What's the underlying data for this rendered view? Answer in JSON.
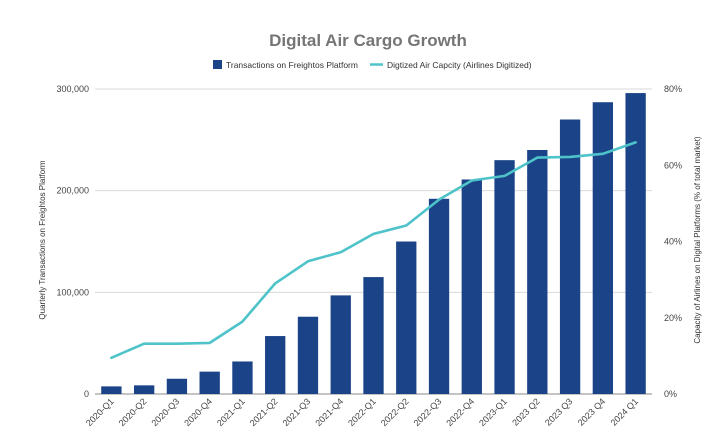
{
  "chart_data": {
    "type": "bar",
    "title": "Digital Air Cargo Growth",
    "categories": [
      "2020-Q1",
      "2020-Q2",
      "2020-Q3",
      "2020-Q4",
      "2021-Q1",
      "2021-Q2",
      "2021-Q3",
      "2021-Q4",
      "2022-Q1",
      "2022-Q2",
      "2022-Q3",
      "2022-Q4",
      "2023-Q1",
      "2023 Q2",
      "2023 Q3",
      "2023 Q4",
      "2024 Q1"
    ],
    "series": [
      {
        "name": "Transactions on Freightos Platform",
        "type": "bar",
        "axis": "left",
        "color": "#1b4488",
        "values": [
          7500,
          8500,
          15000,
          22000,
          32000,
          57000,
          76000,
          97000,
          115000,
          150000,
          192000,
          211000,
          230000,
          240000,
          270000,
          287000,
          296000
        ]
      },
      {
        "name": "Digtized Air Capcity (Airlines Digitized)",
        "type": "line",
        "axis": "right",
        "color": "#4ec3c9",
        "values": [
          9.5,
          13.2,
          13.2,
          13.4,
          19,
          29,
          34.8,
          37.2,
          42,
          44.2,
          51,
          56,
          57.2,
          62,
          62.2,
          63,
          66
        ]
      }
    ],
    "ylabel": "Quarterly Transactions on Freightos Platform",
    "ylabel_right": "Capacity of Airlines on Digital Platforms  (% of total market)",
    "ylim": [
      0,
      300000
    ],
    "ylim_right": [
      0,
      80
    ],
    "y_ticks": [
      "0",
      "100,000",
      "200,000",
      "300,000"
    ],
    "y_ticks_right": [
      "0%",
      "20%",
      "40%",
      "60%",
      "80%"
    ],
    "grid": true,
    "legend_position": "top-center"
  }
}
